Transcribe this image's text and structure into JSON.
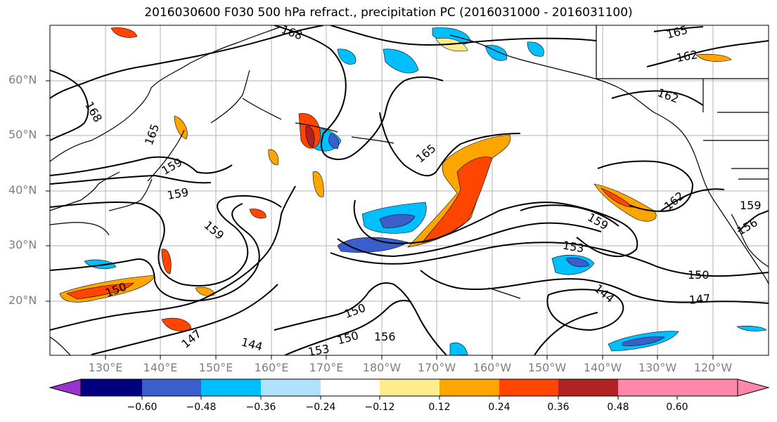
{
  "title": "2016030600 F030 500 hPa refract., precipitation PC (2016031000 - 2016031100)",
  "lat_labels": [
    "60°N",
    "50°N",
    "40°N",
    "30°N",
    "20°N"
  ],
  "lon_labels": [
    "130°E",
    "140°E",
    "150°E",
    "160°E",
    "170°E",
    "180°W",
    "170°W",
    "160°W",
    "150°W",
    "140°W",
    "130°W",
    "120°W"
  ],
  "colorbar": {
    "colors": [
      "#9933cc",
      "#000080",
      "#3a5fcd",
      "#00bfff",
      "#b0e2ff",
      "#ffffff",
      "#ffec8b",
      "#ffa500",
      "#ff4500",
      "#b22222",
      "#ff88aa"
    ],
    "tick_labels": [
      "−0.60",
      "−0.48",
      "−0.36",
      "−0.24",
      "−0.12",
      "0.12",
      "0.24",
      "0.36",
      "0.48",
      "0.60"
    ]
  },
  "contour_labels": [
    "168",
    "168",
    "165",
    "165",
    "165",
    "162",
    "162",
    "162",
    "159",
    "159",
    "159",
    "159",
    "159",
    "156",
    "156",
    "153",
    "153",
    "150",
    "150",
    "150",
    "150",
    "147",
    "147",
    "144",
    "144"
  ]
}
